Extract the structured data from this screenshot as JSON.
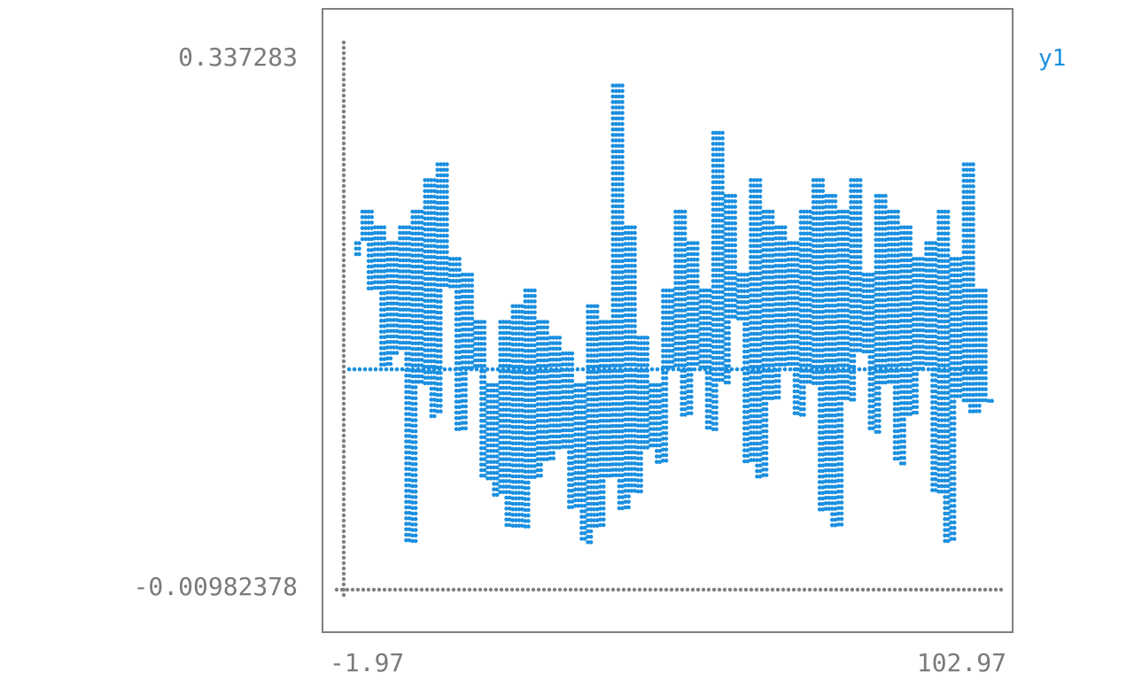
{
  "colors": {
    "axis": "#808080",
    "frame": "#808080",
    "series": "#1a8fe0",
    "text": "#7a7a7a"
  },
  "chart_data": {
    "type": "line",
    "style": "braille-dot terminal plot",
    "title": "",
    "xlabel": "",
    "ylabel": "",
    "xlim": [
      -1.97,
      102.97
    ],
    "ylim": [
      -0.00982378,
      0.337283
    ],
    "x_tick_labels": [
      "-1.97",
      "102.97"
    ],
    "y_tick_labels": [
      "0.337283",
      "-0.00982378"
    ],
    "legend_position": "top-right",
    "grid": false,
    "series": [
      {
        "name": "y1",
        "color": "#1a8fe0",
        "x": [
          0,
          1,
          2,
          3,
          4,
          5,
          6,
          7,
          8,
          9,
          10,
          11,
          12,
          13,
          14,
          15,
          16,
          17,
          18,
          19,
          20,
          21,
          22,
          23,
          24,
          25,
          26,
          27,
          28,
          29,
          30,
          31,
          32,
          33,
          34,
          35,
          36,
          37,
          38,
          39,
          40,
          41,
          42,
          43,
          44,
          45,
          46,
          47,
          48,
          49,
          50,
          51,
          52,
          53,
          54,
          55,
          56,
          57,
          58,
          59,
          60,
          61,
          62,
          63,
          64,
          65,
          66,
          67,
          68,
          69,
          70,
          71,
          72,
          73,
          74,
          75,
          76,
          77,
          78,
          79,
          80,
          81,
          82,
          83,
          84,
          85,
          86,
          87,
          88,
          89,
          90,
          91,
          92,
          93,
          94,
          95,
          96,
          97,
          98,
          99,
          100,
          101
        ],
        "y": [
          0.2,
          0.21,
          0.23,
          0.18,
          0.22,
          0.13,
          0.21,
          0.14,
          0.22,
          0.02,
          0.23,
          0.12,
          0.25,
          0.1,
          0.26,
          0.18,
          0.2,
          0.09,
          0.19,
          0.13,
          0.16,
          0.06,
          0.12,
          0.05,
          0.16,
          0.03,
          0.17,
          0.03,
          0.18,
          0.06,
          0.16,
          0.07,
          0.15,
          0.08,
          0.14,
          0.04,
          0.12,
          0.02,
          0.17,
          0.03,
          0.16,
          0.06,
          0.31,
          0.04,
          0.22,
          0.05,
          0.15,
          0.08,
          0.12,
          0.07,
          0.18,
          0.13,
          0.23,
          0.1,
          0.21,
          0.13,
          0.18,
          0.09,
          0.28,
          0.12,
          0.24,
          0.16,
          0.19,
          0.07,
          0.25,
          0.06,
          0.23,
          0.11,
          0.22,
          0.13,
          0.21,
          0.1,
          0.23,
          0.12,
          0.25,
          0.04,
          0.24,
          0.03,
          0.23,
          0.11,
          0.25,
          0.14,
          0.19,
          0.09,
          0.24,
          0.12,
          0.23,
          0.07,
          0.22,
          0.1,
          0.2,
          0.13,
          0.21,
          0.05,
          0.23,
          0.02,
          0.2,
          0.11,
          0.26,
          0.1,
          0.18,
          0.11
        ]
      }
    ],
    "baseline": 0.13
  }
}
